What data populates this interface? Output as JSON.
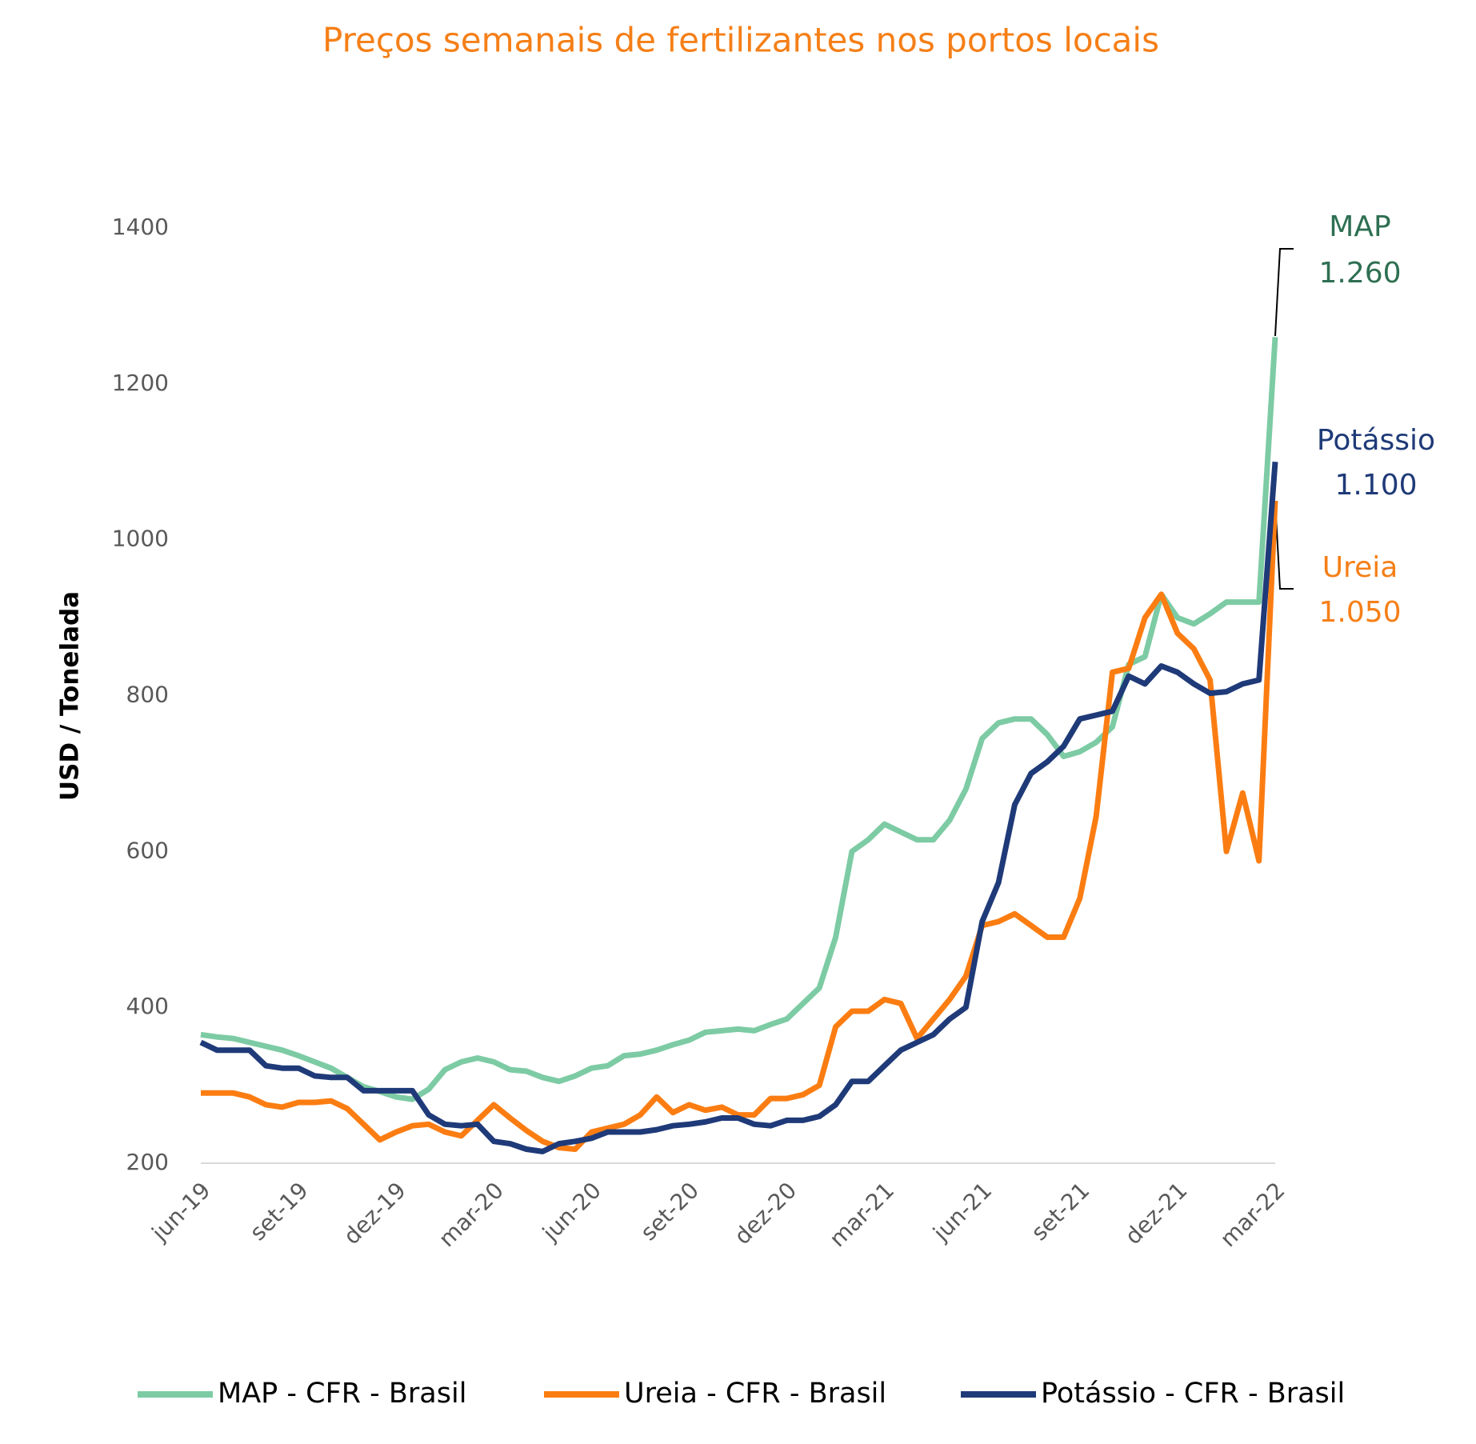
{
  "chart_data": {
    "type": "line",
    "title": "Preços semanais de fertilizantes nos portos locais",
    "ylabel": "USD / Tonelada",
    "categories": [
      "jun-19",
      null,
      null,
      null,
      null,
      null,
      "set-19",
      null,
      null,
      null,
      null,
      null,
      "dez-19",
      null,
      null,
      null,
      null,
      null,
      "mar-20",
      null,
      null,
      null,
      null,
      null,
      "jun-20",
      null,
      null,
      null,
      null,
      null,
      "set-20",
      null,
      null,
      null,
      null,
      null,
      "dez-20",
      null,
      null,
      null,
      null,
      null,
      "mar-21",
      null,
      null,
      null,
      null,
      null,
      "jun-21",
      null,
      null,
      null,
      null,
      null,
      "set-21",
      null,
      null,
      null,
      null,
      null,
      "dez-21",
      null,
      null,
      null,
      null,
      null,
      "mar-22"
    ],
    "series": [
      {
        "name": "MAP - CFR - Brasil",
        "color": "#7dcba4",
        "values": [
          365,
          362,
          360,
          355,
          350,
          345,
          338,
          330,
          322,
          310,
          298,
          292,
          285,
          282,
          295,
          320,
          330,
          335,
          330,
          320,
          318,
          310,
          305,
          312,
          322,
          325,
          338,
          340,
          345,
          352,
          358,
          368,
          370,
          372,
          370,
          378,
          385,
          405,
          425,
          490,
          600,
          615,
          635,
          625,
          615,
          615,
          640,
          680,
          745,
          765,
          770,
          770,
          750,
          722,
          728,
          740,
          760,
          840,
          850,
          930,
          900,
          892,
          905,
          920,
          920,
          920,
          1260
        ]
      },
      {
        "name": "Ureia - CFR - Brasil",
        "color": "#fb7d12",
        "values": [
          290,
          290,
          290,
          285,
          275,
          272,
          278,
          278,
          280,
          270,
          250,
          230,
          240,
          248,
          250,
          240,
          235,
          255,
          275,
          258,
          242,
          228,
          220,
          218,
          240,
          245,
          250,
          262,
          285,
          265,
          275,
          268,
          272,
          262,
          262,
          283,
          283,
          288,
          300,
          375,
          395,
          395,
          410,
          405,
          360,
          385,
          410,
          440,
          505,
          510,
          520,
          505,
          490,
          490,
          540,
          645,
          830,
          835,
          900,
          930,
          880,
          860,
          820,
          600,
          675,
          588,
          1050
        ]
      },
      {
        "name": "Potássio - CFR - Brasil",
        "color": "#1f3a78",
        "values": [
          355,
          345,
          345,
          345,
          325,
          322,
          322,
          312,
          310,
          310,
          293,
          293,
          293,
          293,
          262,
          250,
          248,
          250,
          228,
          225,
          218,
          215,
          225,
          228,
          232,
          240,
          240,
          240,
          243,
          248,
          250,
          253,
          258,
          258,
          250,
          248,
          255,
          255,
          260,
          275,
          305,
          305,
          325,
          345,
          355,
          365,
          385,
          400,
          510,
          560,
          660,
          700,
          715,
          735,
          770,
          775,
          780,
          825,
          815,
          838,
          830,
          815,
          803,
          805,
          815,
          820,
          1100
        ]
      }
    ],
    "ylim": [
      200,
      1400
    ],
    "yticks": [
      200,
      400,
      600,
      800,
      1000,
      1200,
      1400
    ],
    "grid": false,
    "legend": "bottom",
    "annotations": [
      {
        "name": "MAP",
        "value": "1.260",
        "color": "#2e6f52"
      },
      {
        "name": "Potássio",
        "value": "1.100",
        "color": "#1f3a78"
      },
      {
        "name": "Ureia",
        "value": "1.050",
        "color": "#f57f17"
      }
    ]
  }
}
